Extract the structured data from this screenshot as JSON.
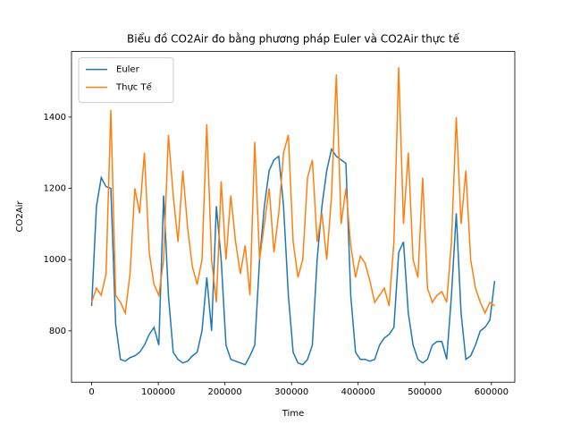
{
  "chart_data": {
    "type": "line",
    "title": "Biểu đồ CO2Air đo bằng phương pháp Euler và CO2Air thực tế",
    "x_label": "Time",
    "y_label": "CO2Air",
    "x": [
      0,
      7200,
      14400,
      21600,
      28800,
      36000,
      43200,
      50400,
      57600,
      64800,
      72000,
      79200,
      86400,
      93600,
      100800,
      108000,
      115200,
      122400,
      129600,
      136800,
      144000,
      151200,
      158400,
      165600,
      172800,
      180000,
      187200,
      194400,
      201600,
      208800,
      216000,
      223200,
      230400,
      237600,
      244800,
      252000,
      259200,
      266400,
      273600,
      280800,
      288000,
      295200,
      302400,
      309600,
      316800,
      324000,
      331200,
      338400,
      345600,
      352800,
      360000,
      367200,
      374400,
      381600,
      388800,
      396000,
      403200,
      410400,
      417600,
      424800,
      432000,
      439200,
      446400,
      453600,
      460800,
      468000,
      475200,
      482400,
      489600,
      496800,
      504000,
      511200,
      518400,
      525600,
      532800,
      540000,
      547200,
      554400,
      561600,
      568800,
      576000,
      583200,
      590400,
      597600,
      604800
    ],
    "series": [
      {
        "name": "Euler",
        "color": "#1f77b4",
        "values": [
          870,
          1150,
          1230,
          1205,
          1200,
          820,
          720,
          715,
          725,
          730,
          740,
          760,
          790,
          810,
          760,
          1180,
          900,
          740,
          720,
          710,
          715,
          730,
          740,
          800,
          950,
          800,
          1150,
          1000,
          760,
          720,
          715,
          710,
          705,
          730,
          760,
          1000,
          1150,
          1250,
          1280,
          1290,
          1150,
          900,
          740,
          710,
          705,
          720,
          760,
          1000,
          1150,
          1250,
          1310,
          1290,
          1280,
          1270,
          900,
          740,
          720,
          720,
          715,
          720,
          760,
          780,
          790,
          810,
          1020,
          1050,
          850,
          760,
          720,
          710,
          720,
          760,
          770,
          770,
          720,
          900,
          1130,
          850,
          720,
          730,
          760,
          800,
          810,
          830,
          940
        ]
      },
      {
        "name": "Thực Tế",
        "color": "#ff7f0e",
        "values": [
          880,
          920,
          900,
          960,
          1420,
          900,
          880,
          850,
          960,
          1200,
          1130,
          1300,
          1020,
          930,
          900,
          1000,
          1350,
          1180,
          1050,
          1250,
          1090,
          980,
          930,
          1000,
          1380,
          1000,
          880,
          1220,
          1000,
          1180,
          1050,
          960,
          1040,
          900,
          1330,
          1000,
          1100,
          1200,
          1020,
          1130,
          1300,
          1350,
          1050,
          950,
          1000,
          1230,
          1280,
          1050,
          1130,
          1000,
          1180,
          1520,
          1100,
          1200,
          1040,
          950,
          1010,
          990,
          940,
          880,
          900,
          920,
          870,
          1050,
          1540,
          1100,
          1300,
          1000,
          950,
          1230,
          920,
          880,
          900,
          910,
          880,
          1050,
          1400,
          1100,
          1250,
          1000,
          920,
          880,
          850,
          880,
          870
        ]
      }
    ],
    "xlim": [
      -30240,
      635040
    ],
    "ylim": [
      656,
      1584
    ],
    "xticks": [
      0,
      100000,
      200000,
      300000,
      400000,
      500000,
      600000
    ],
    "yticks": [
      800,
      1000,
      1200,
      1400
    ],
    "grid": false,
    "legend": "upper-left"
  }
}
